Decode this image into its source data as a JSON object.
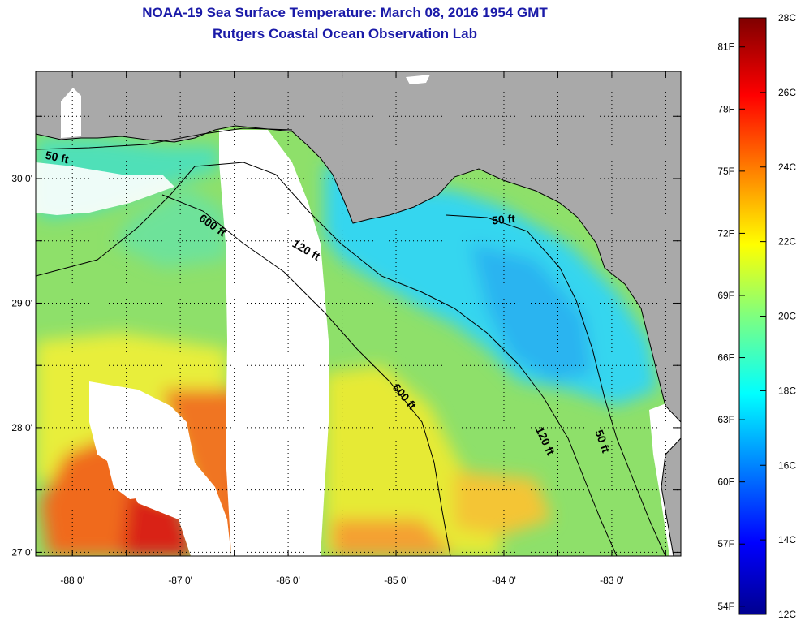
{
  "title": {
    "line1": "NOAA-19 Sea Surface Temperature:  March 08, 2016 1954 GMT",
    "line2": "Rutgers Coastal Ocean Observation Lab"
  },
  "map": {
    "lat_labels": [
      "30 0'",
      "29 0'",
      "28 0'",
      "27 0'"
    ],
    "lat_values": [
      30,
      29,
      28,
      27
    ],
    "lon_labels": [
      "-88 0'",
      "-87 0'",
      "-86 0'",
      "-85 0'",
      "-84 0'",
      "-83 0'"
    ],
    "lon_values": [
      -88,
      -87,
      -86,
      -85,
      -84,
      -83
    ],
    "lat_range": [
      26.97,
      30.86
    ],
    "lon_range": [
      -88.34,
      -82.36
    ],
    "depth_contours": [
      {
        "label": "50 ft",
        "lon": -88.15,
        "lat": 30.14,
        "angle": 12
      },
      {
        "label": "600 ft",
        "lon": -86.72,
        "lat": 29.6,
        "angle": 35
      },
      {
        "label": "120 ft",
        "lon": -85.85,
        "lat": 29.4,
        "angle": 30
      },
      {
        "label": "50 ft",
        "lon": -84.0,
        "lat": 29.64,
        "angle": -5
      },
      {
        "label": "600 ft",
        "lon": -84.95,
        "lat": 28.23,
        "angle": 50
      },
      {
        "label": "120 ft",
        "lon": -83.65,
        "lat": 27.88,
        "angle": 65
      },
      {
        "label": "50 ft",
        "lon": -83.12,
        "lat": 27.88,
        "angle": 70
      }
    ],
    "colors": {
      "land": "#a9a9a9",
      "cloud": "#ffffff",
      "border": "#000000"
    }
  },
  "colorbar": {
    "celsius_labels": [
      "28C",
      "26C",
      "24C",
      "22C",
      "20C",
      "18C",
      "16C",
      "14C",
      "12C"
    ],
    "celsius_values": [
      28,
      26,
      24,
      22,
      20,
      18,
      16,
      14,
      12
    ],
    "fahrenheit_labels": [
      "81F",
      "78F",
      "75F",
      "72F",
      "69F",
      "66F",
      "63F",
      "60F",
      "57F",
      "54F"
    ],
    "fahrenheit_values": [
      81,
      78,
      75,
      72,
      69,
      66,
      63,
      60,
      57,
      54
    ],
    "range_c": [
      12,
      28
    ]
  }
}
